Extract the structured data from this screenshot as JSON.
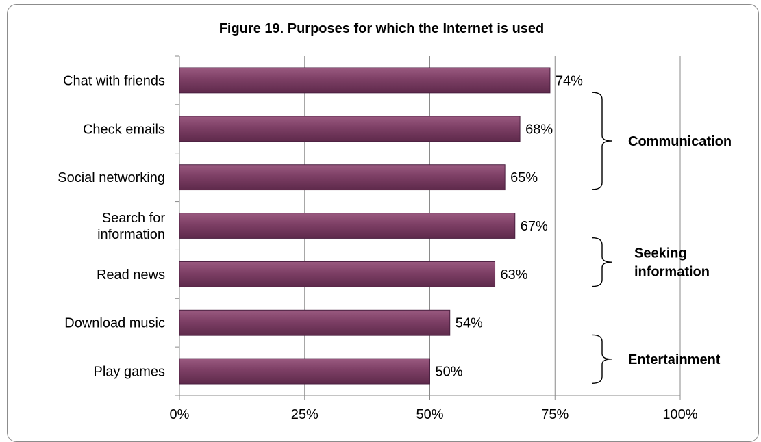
{
  "chart_data": {
    "type": "bar",
    "orientation": "horizontal",
    "title": "Figure 19. Purposes for which the Internet is used",
    "categories": [
      "Chat with friends",
      "Check emails",
      "Social networking",
      "Search for information",
      "Read news",
      "Download music",
      "Play games"
    ],
    "category_lines": [
      [
        "Chat with friends"
      ],
      [
        "Check emails"
      ],
      [
        "Social networking"
      ],
      [
        "Search for",
        "information"
      ],
      [
        "Read news"
      ],
      [
        "Download music"
      ],
      [
        "Play games"
      ]
    ],
    "values": [
      74,
      68,
      65,
      67,
      63,
      54,
      50
    ],
    "value_labels": [
      "74%",
      "68%",
      "65%",
      "67%",
      "63%",
      "54%",
      "50%"
    ],
    "xlim": [
      0,
      100
    ],
    "xticks": [
      0,
      25,
      50,
      75,
      100
    ],
    "xtick_labels": [
      "0%",
      "25%",
      "50%",
      "75%",
      "100%"
    ],
    "grid": "vertical",
    "bar_color": "#7d3f65",
    "groups": [
      {
        "label_lines": [
          "Communication"
        ],
        "from_index": 0,
        "to_index": 2
      },
      {
        "label_lines": [
          "Seeking",
          "information"
        ],
        "from_index": 3,
        "to_index": 4
      },
      {
        "label_lines": [
          "Entertainment"
        ],
        "from_index": 5,
        "to_index": 6
      }
    ]
  }
}
